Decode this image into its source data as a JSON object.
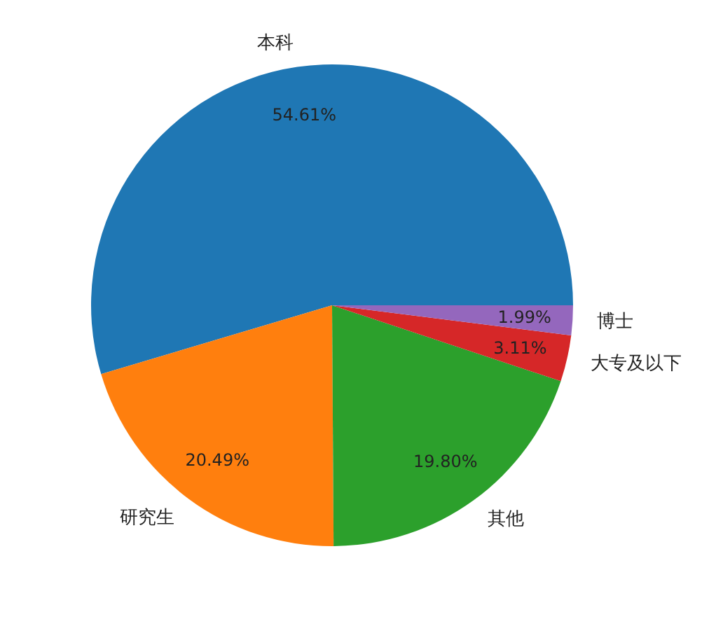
{
  "chart_data": {
    "type": "pie",
    "categories": [
      "本科",
      "研究生",
      "其他",
      "大专及以下",
      "博士"
    ],
    "values": [
      54.61,
      20.49,
      19.8,
      3.11,
      1.99
    ],
    "colors": [
      "#1f77b4",
      "#ff7f0e",
      "#2ca02c",
      "#d62728",
      "#9467bd"
    ],
    "value_labels": [
      "54.61%",
      "20.49%",
      "19.80%",
      "3.11%",
      "1.99%"
    ],
    "legend": false
  }
}
